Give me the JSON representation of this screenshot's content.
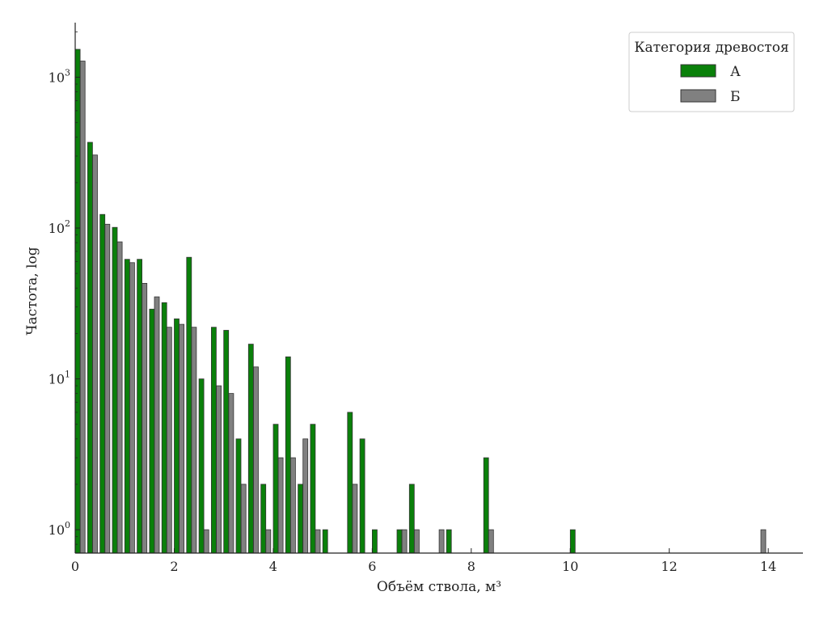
{
  "colors": {
    "А": "#0a800a",
    "Б": "#808080",
    "edge": "#333333"
  },
  "chart_data": {
    "type": "bar",
    "scale_y": "log",
    "xlabel": "Объём ствола, м³",
    "ylabel": "Частота, log",
    "xlim": [
      0,
      14.7
    ],
    "ylim": [
      0.7,
      2300
    ],
    "xticks": [
      0,
      2,
      4,
      6,
      8,
      10,
      12,
      14
    ],
    "xtick_labels": [
      "0",
      "2",
      "4",
      "6",
      "8",
      "10",
      "12",
      "14"
    ],
    "yticks": [
      1,
      10,
      100,
      1000
    ],
    "ytick_labels": [
      [
        "10",
        "0"
      ],
      [
        "10",
        "1"
      ],
      [
        "10",
        "2"
      ],
      [
        "10",
        "3"
      ]
    ],
    "grid": false,
    "legend": {
      "title": "Категория древостоя",
      "location": "top-right"
    },
    "series": [
      {
        "name": "А",
        "bars": [
          {
            "x": 0.05,
            "y": 1530
          },
          {
            "x": 0.3,
            "y": 370
          },
          {
            "x": 0.55,
            "y": 123
          },
          {
            "x": 0.8,
            "y": 101
          },
          {
            "x": 1.05,
            "y": 62
          },
          {
            "x": 1.3,
            "y": 62
          },
          {
            "x": 1.55,
            "y": 29
          },
          {
            "x": 1.8,
            "y": 32
          },
          {
            "x": 2.05,
            "y": 25
          },
          {
            "x": 2.3,
            "y": 64
          },
          {
            "x": 2.55,
            "y": 10
          },
          {
            "x": 2.8,
            "y": 22
          },
          {
            "x": 3.05,
            "y": 21
          },
          {
            "x": 3.3,
            "y": 4
          },
          {
            "x": 3.55,
            "y": 17
          },
          {
            "x": 3.8,
            "y": 2
          },
          {
            "x": 4.05,
            "y": 5
          },
          {
            "x": 4.3,
            "y": 14
          },
          {
            "x": 4.55,
            "y": 2
          },
          {
            "x": 4.8,
            "y": 5
          },
          {
            "x": 5.05,
            "y": 1
          },
          {
            "x": 5.55,
            "y": 6
          },
          {
            "x": 5.8,
            "y": 4
          },
          {
            "x": 6.05,
            "y": 1
          },
          {
            "x": 6.55,
            "y": 1
          },
          {
            "x": 6.8,
            "y": 2
          },
          {
            "x": 7.55,
            "y": 1
          },
          {
            "x": 8.3,
            "y": 3
          },
          {
            "x": 10.05,
            "y": 1
          }
        ]
      },
      {
        "name": "Б",
        "bars": [
          {
            "x": 0.15,
            "y": 1280
          },
          {
            "x": 0.4,
            "y": 305
          },
          {
            "x": 0.65,
            "y": 106
          },
          {
            "x": 0.9,
            "y": 81
          },
          {
            "x": 1.15,
            "y": 59
          },
          {
            "x": 1.4,
            "y": 43
          },
          {
            "x": 1.65,
            "y": 35
          },
          {
            "x": 1.9,
            "y": 22
          },
          {
            "x": 2.15,
            "y": 23
          },
          {
            "x": 2.4,
            "y": 22
          },
          {
            "x": 2.65,
            "y": 1
          },
          {
            "x": 2.9,
            "y": 9
          },
          {
            "x": 3.15,
            "y": 8
          },
          {
            "x": 3.4,
            "y": 2
          },
          {
            "x": 3.65,
            "y": 12
          },
          {
            "x": 3.9,
            "y": 1
          },
          {
            "x": 4.15,
            "y": 3
          },
          {
            "x": 4.4,
            "y": 3
          },
          {
            "x": 4.65,
            "y": 4
          },
          {
            "x": 4.9,
            "y": 1
          },
          {
            "x": 5.65,
            "y": 2
          },
          {
            "x": 6.65,
            "y": 1
          },
          {
            "x": 6.9,
            "y": 1
          },
          {
            "x": 7.4,
            "y": 1
          },
          {
            "x": 8.4,
            "y": 1
          },
          {
            "x": 13.9,
            "y": 1
          }
        ]
      }
    ]
  }
}
